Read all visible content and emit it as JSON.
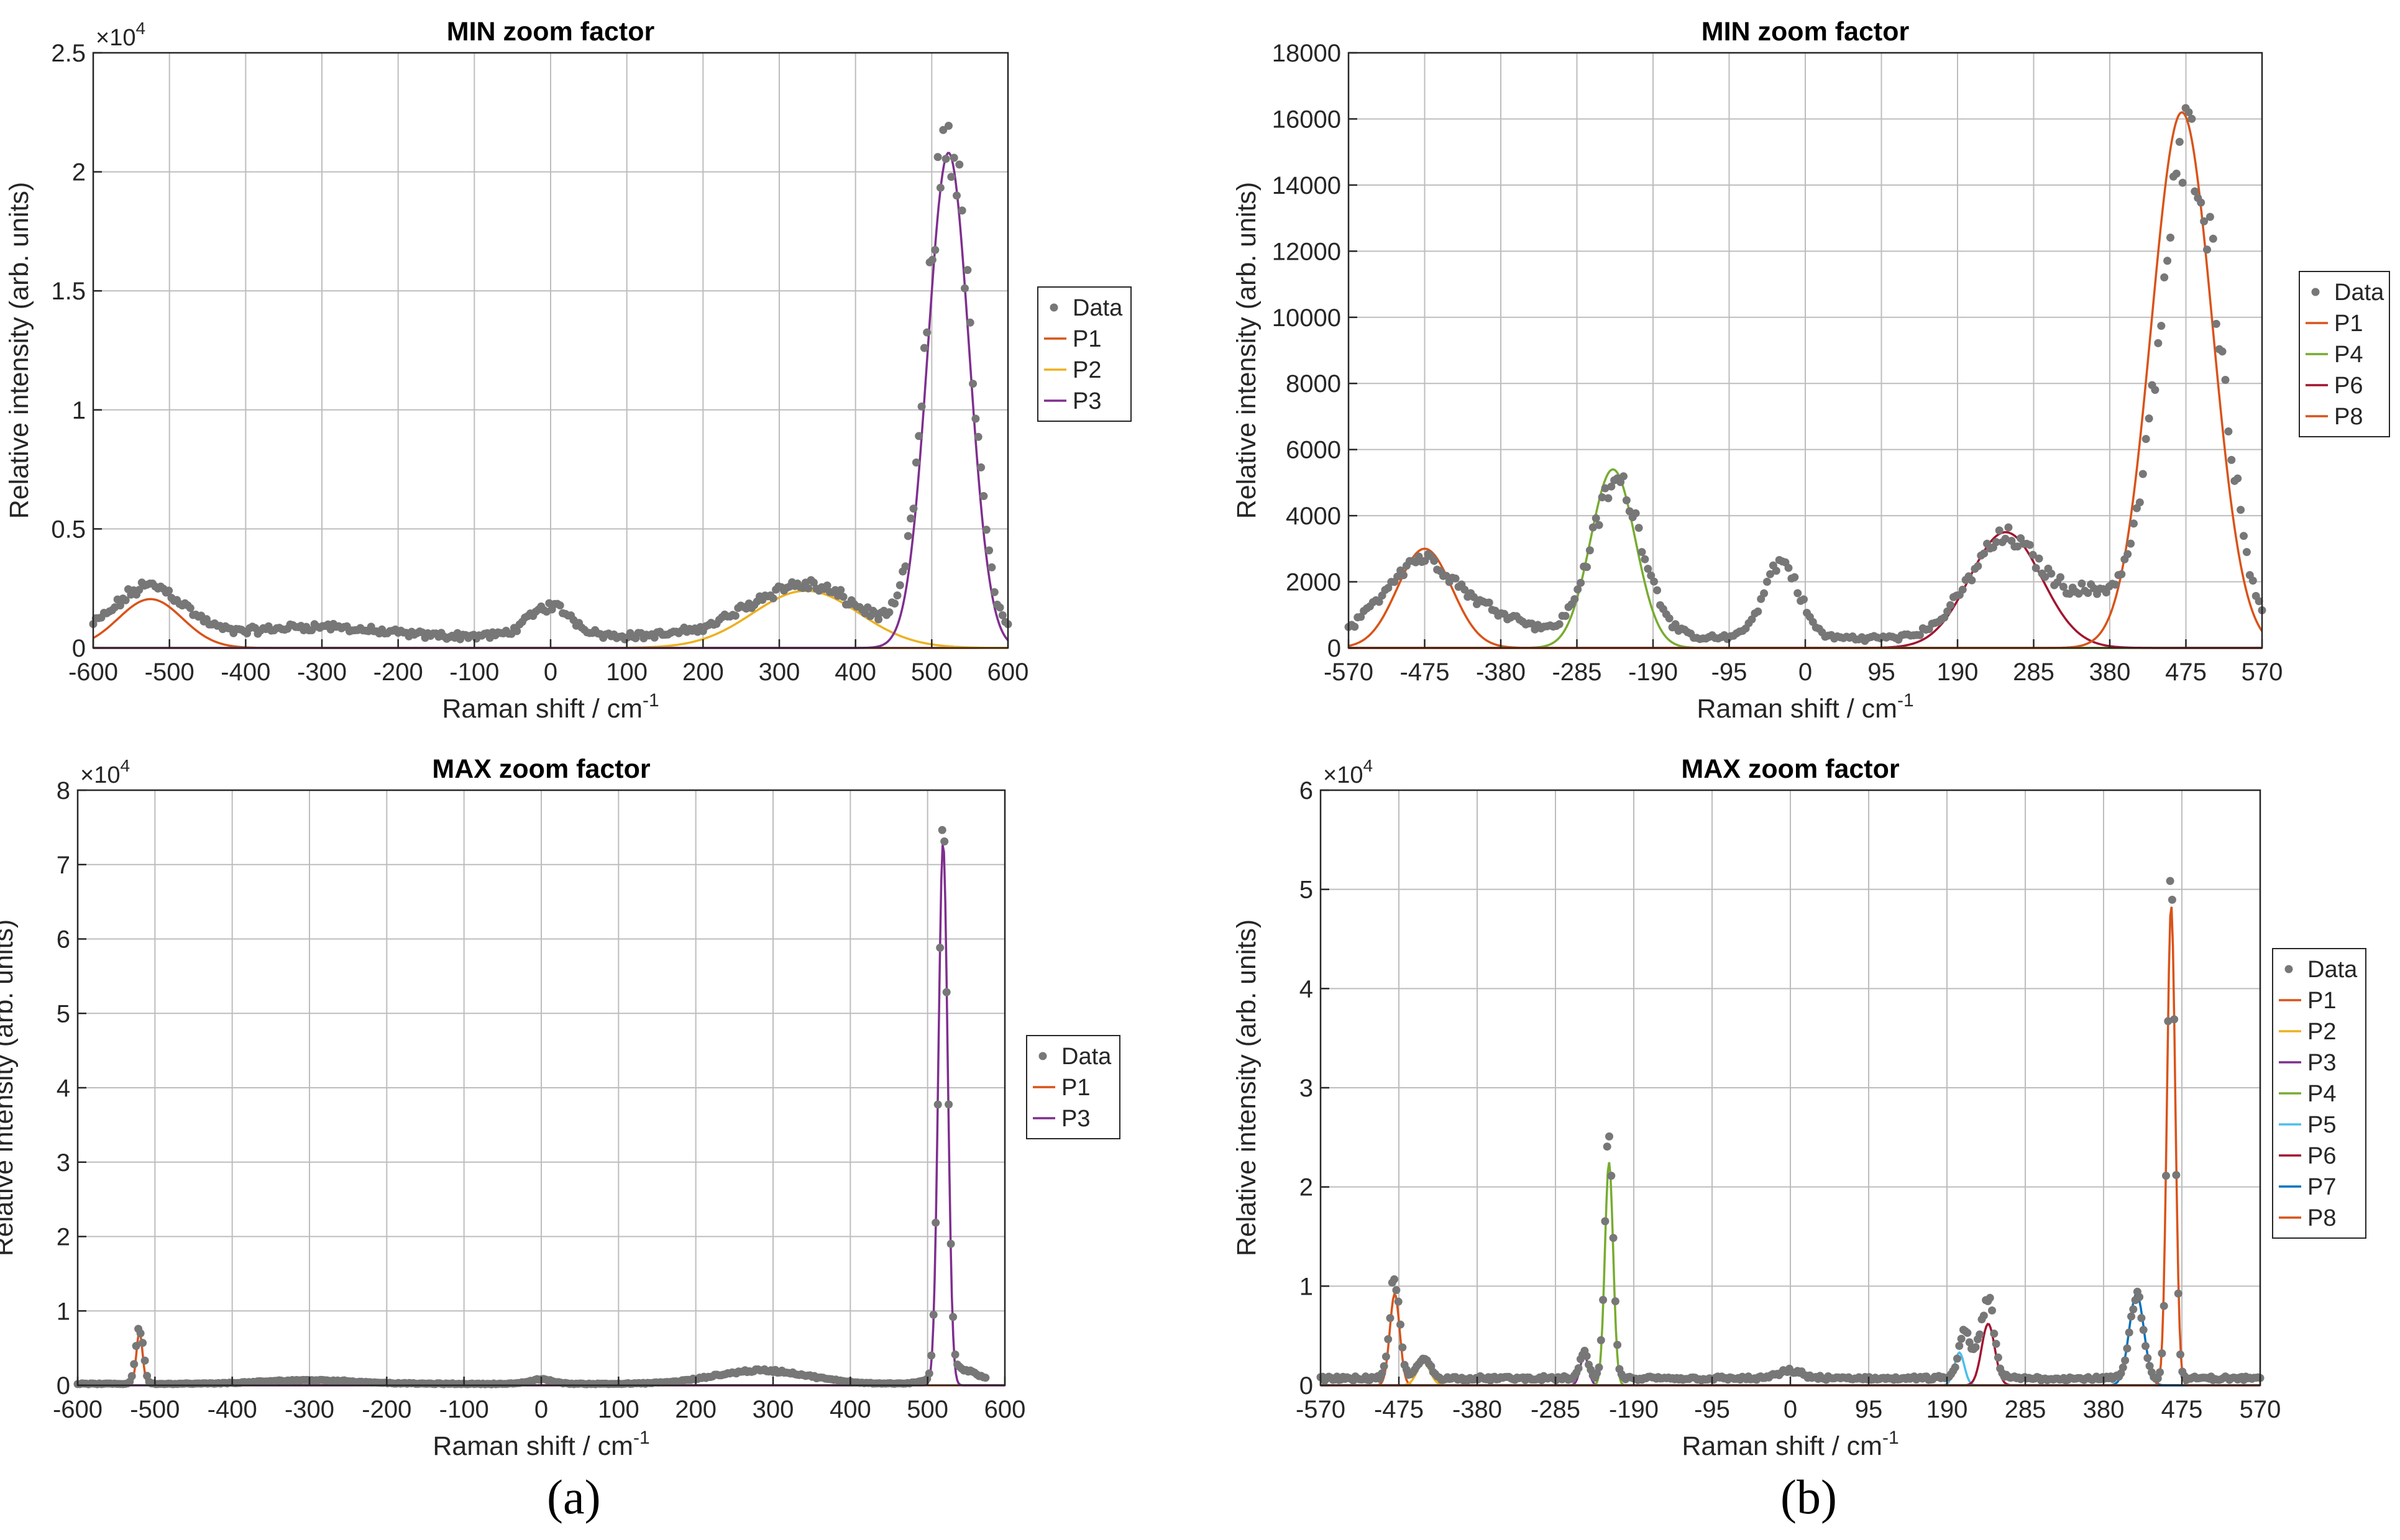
{
  "figure": {
    "panel_a_label": "(a)",
    "panel_b_label": "(b)"
  },
  "colors": {
    "data_points": "#777777",
    "grid": "#bdbdbd",
    "axes": "#262626",
    "series": {
      "P1": "#d95319",
      "P2": "#edb120",
      "P3": "#7e2f8e",
      "P4": "#77ac30",
      "P5": "#4dbeee",
      "P6": "#a2142f",
      "P7": "#0072bd",
      "P8": "#d95319"
    }
  },
  "chart_data": [
    {
      "id": "a-min",
      "type": "scatter",
      "title": "MIN zoom factor",
      "xlabel": "Raman shift / cm",
      "xlabel_exp": "-1",
      "ylabel": "Relative intensity (arb. units)",
      "xlim": [
        -600,
        600
      ],
      "ylim": [
        0,
        25000
      ],
      "xticks": [
        -600,
        -500,
        -400,
        -300,
        -200,
        -100,
        0,
        100,
        200,
        300,
        400,
        500,
        600
      ],
      "xtick_labels": [
        "-600",
        "-500",
        "-400",
        "-300",
        "-200",
        "-100",
        "0",
        "100",
        "200",
        "300",
        "400",
        "500",
        "600"
      ],
      "yticks": [
        0,
        5000,
        10000,
        15000,
        20000,
        25000
      ],
      "ytick_labels": [
        "0",
        "0.5",
        "1",
        "1.5",
        "2",
        "2.5"
      ],
      "y_multiplier": "×10",
      "y_multiplier_exp": "4",
      "legend_position": "east-outside",
      "data_points": {
        "name": "Data",
        "x_range": [
          -600,
          600
        ],
        "count": 340,
        "peaks": [
          {
            "center": -525,
            "amp": 2100,
            "width": 45
          },
          {
            "center": -310,
            "amp": 400,
            "width": 70
          },
          {
            "center": 0,
            "amp": 1250,
            "width": 28
          },
          {
            "center": 330,
            "amp": 2150,
            "width": 70
          },
          {
            "center": 522,
            "amp": 21000,
            "width": 28
          }
        ],
        "baseline": 500
      },
      "series": [
        {
          "name": "P1",
          "center": -525,
          "amp": 2050,
          "width": 42
        },
        {
          "name": "P2",
          "center": 335,
          "amp": 2400,
          "width": 70
        },
        {
          "name": "P3",
          "center": 522,
          "amp": 20800,
          "width": 27
        }
      ]
    },
    {
      "id": "b-min",
      "type": "scatter",
      "title": "MIN zoom factor",
      "xlabel": "Raman shift / cm",
      "xlabel_exp": "-1",
      "ylabel": "Relative intensity (arb. units)",
      "xlim": [
        -570,
        570
      ],
      "ylim": [
        0,
        18000
      ],
      "xticks": [
        -570,
        -475,
        -380,
        -285,
        -190,
        -95,
        0,
        95,
        190,
        285,
        380,
        475,
        570
      ],
      "xtick_labels": [
        "-570",
        "-475",
        "-380",
        "-285",
        "-190",
        "-95",
        "0",
        "95",
        "190",
        "285",
        "380",
        "475",
        "570"
      ],
      "yticks": [
        0,
        2000,
        4000,
        6000,
        8000,
        10000,
        12000,
        14000,
        16000,
        18000
      ],
      "ytick_labels": [
        "0",
        "2000",
        "4000",
        "6000",
        "8000",
        "10000",
        "12000",
        "14000",
        "16000",
        "18000"
      ],
      "y_multiplier": "",
      "y_multiplier_exp": "",
      "legend_position": "east-outside",
      "data_points": {
        "name": "Data",
        "x_range": [
          -570,
          570
        ],
        "count": 300,
        "peaks": [
          {
            "center": -480,
            "amp": 2400,
            "width": 45
          },
          {
            "center": -380,
            "amp": 600,
            "width": 40
          },
          {
            "center": -235,
            "amp": 4700,
            "width": 32
          },
          {
            "center": -30,
            "amp": 2300,
            "width": 22
          },
          {
            "center": 250,
            "amp": 3000,
            "width": 45
          },
          {
            "center": 360,
            "amp": 1200,
            "width": 40
          },
          {
            "center": 480,
            "amp": 15000,
            "width": 38
          }
        ],
        "baseline": 300
      },
      "series": [
        {
          "name": "P1",
          "center": -475,
          "amp": 3000,
          "width": 34
        },
        {
          "name": "P4",
          "center": -240,
          "amp": 5400,
          "width": 28
        },
        {
          "name": "P6",
          "center": 250,
          "amp": 3500,
          "width": 45
        },
        {
          "name": "P8",
          "center": 470,
          "amp": 16200,
          "width": 38
        }
      ]
    },
    {
      "id": "a-max",
      "type": "scatter",
      "title": "MAX zoom factor",
      "xlabel": "Raman shift / cm",
      "xlabel_exp": "-1",
      "ylabel": "Relative intensity (arb. units)",
      "xlim": [
        -600,
        600
      ],
      "ylim": [
        0,
        80000
      ],
      "xticks": [
        -600,
        -500,
        -400,
        -300,
        -200,
        -100,
        0,
        100,
        200,
        300,
        400,
        500,
        600
      ],
      "xtick_labels": [
        "-600",
        "-500",
        "-400",
        "-300",
        "-200",
        "-100",
        "0",
        "100",
        "200",
        "300",
        "400",
        "500",
        "600"
      ],
      "yticks": [
        0,
        10000,
        20000,
        30000,
        40000,
        50000,
        60000,
        70000,
        80000
      ],
      "ytick_labels": [
        "0",
        "1",
        "2",
        "3",
        "4",
        "5",
        "6",
        "7",
        "8"
      ],
      "y_multiplier": "×10",
      "y_multiplier_exp": "4",
      "legend_position": "east-outside",
      "data_points": {
        "name": "Data",
        "x_range": [
          -600,
          575
        ],
        "count": 420,
        "peaks": [
          {
            "center": -520,
            "amp": 7500,
            "width": 5
          },
          {
            "center": -300,
            "amp": 500,
            "width": 60
          },
          {
            "center": 0,
            "amp": 600,
            "width": 15
          },
          {
            "center": 285,
            "amp": 1800,
            "width": 60
          },
          {
            "center": 520,
            "amp": 74000,
            "width": 6
          },
          {
            "center": 540,
            "amp": 2000,
            "width": 25
          }
        ],
        "baseline": 200
      },
      "series": [
        {
          "name": "P1",
          "center": -520,
          "amp": 7200,
          "width": 4
        },
        {
          "name": "P3",
          "center": 520,
          "amp": 73000,
          "width": 6
        }
      ]
    },
    {
      "id": "b-max",
      "type": "scatter",
      "title": "MAX zoom factor",
      "xlabel": "Raman shift / cm",
      "xlabel_exp": "-1",
      "ylabel": "Relative intensity (arb. units)",
      "xlim": [
        -570,
        570
      ],
      "ylim": [
        0,
        60000
      ],
      "xticks": [
        -570,
        -475,
        -380,
        -285,
        -190,
        -95,
        0,
        95,
        190,
        285,
        380,
        475,
        570
      ],
      "xtick_labels": [
        "-570",
        "-475",
        "-380",
        "-285",
        "-190",
        "-95",
        "0",
        "95",
        "190",
        "285",
        "380",
        "475",
        "570"
      ],
      "yticks": [
        0,
        10000,
        20000,
        30000,
        40000,
        50000,
        60000
      ],
      "ytick_labels": [
        "0",
        "1",
        "2",
        "3",
        "4",
        "5",
        "6"
      ],
      "y_multiplier": "×10",
      "y_multiplier_exp": "4",
      "legend_position": "east-outside",
      "data_points": {
        "name": "Data",
        "x_range": [
          -570,
          570
        ],
        "count": 460,
        "peaks": [
          {
            "center": -480,
            "amp": 10000,
            "width": 6
          },
          {
            "center": -445,
            "amp": 2000,
            "width": 8
          },
          {
            "center": -250,
            "amp": 2700,
            "width": 5
          },
          {
            "center": -220,
            "amp": 24500,
            "width": 5
          },
          {
            "center": 0,
            "amp": 700,
            "width": 15
          },
          {
            "center": 210,
            "amp": 3500,
            "width": 5
          },
          {
            "center": 225,
            "amp": 2500,
            "width": 15
          },
          {
            "center": 240,
            "amp": 6500,
            "width": 7
          },
          {
            "center": 420,
            "amp": 8500,
            "width": 8
          },
          {
            "center": 462,
            "amp": 52000,
            "width": 4.5
          }
        ],
        "baseline": 700
      },
      "series": [
        {
          "name": "P1",
          "center": -480,
          "amp": 9200,
          "width": 6
        },
        {
          "name": "P2",
          "center": -445,
          "amp": 2300,
          "width": 8
        },
        {
          "name": "P3",
          "center": -250,
          "amp": 3000,
          "width": 5
        },
        {
          "name": "P4",
          "center": -220,
          "amp": 22500,
          "width": 5
        },
        {
          "name": "P5",
          "center": 205,
          "amp": 3300,
          "width": 6
        },
        {
          "name": "P6",
          "center": 240,
          "amp": 6200,
          "width": 8
        },
        {
          "name": "P7",
          "center": 420,
          "amp": 9200,
          "width": 9
        },
        {
          "name": "P8",
          "center": 462,
          "amp": 48500,
          "width": 5
        }
      ]
    }
  ]
}
